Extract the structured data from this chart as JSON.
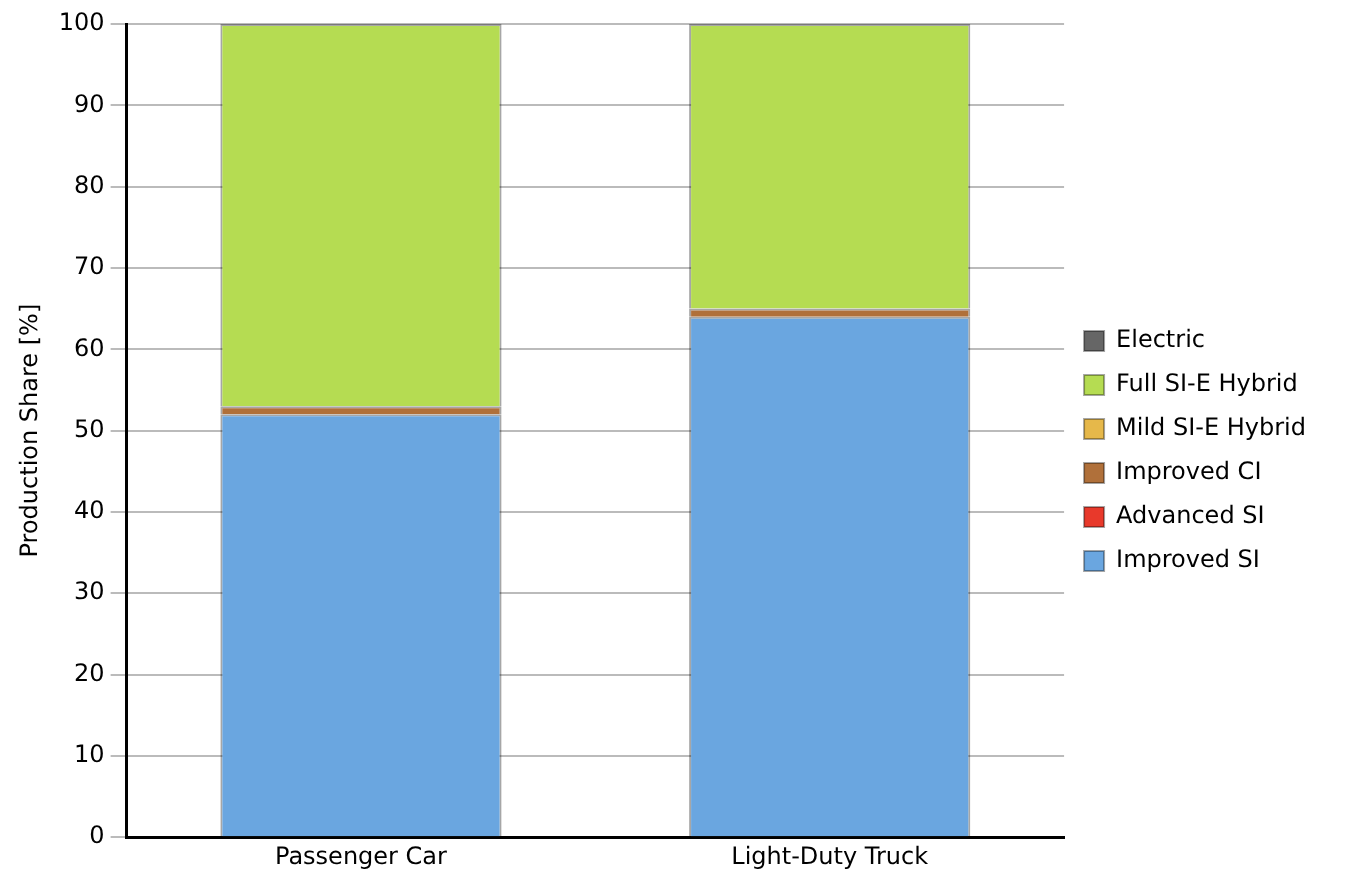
{
  "chart_data": {
    "type": "bar",
    "stacked": true,
    "ylabel": "Production Share [%]",
    "categories": [
      "Passenger Car",
      "Light-Duty Truck"
    ],
    "series": [
      {
        "name": "Improved SI",
        "color": "#6aa6e0",
        "values": [
          52,
          64
        ]
      },
      {
        "name": "Advanced SI",
        "color": "#e8392b",
        "values": [
          0,
          0
        ]
      },
      {
        "name": "Improved CI",
        "color": "#b0703a",
        "values": [
          1,
          1
        ]
      },
      {
        "name": "Mild SI-E Hybrid",
        "color": "#e6b84a",
        "values": [
          0,
          0
        ]
      },
      {
        "name": "Full SI-E Hybrid",
        "color": "#b5dc52",
        "values": [
          47,
          35
        ]
      },
      {
        "name": "Electric",
        "color": "#666666",
        "values": [
          0,
          0
        ]
      }
    ],
    "ylim": [
      0,
      100
    ],
    "yticks": [
      0,
      10,
      20,
      30,
      40,
      50,
      60,
      70,
      80,
      90,
      100
    ],
    "grid": "y",
    "legend": "right"
  }
}
